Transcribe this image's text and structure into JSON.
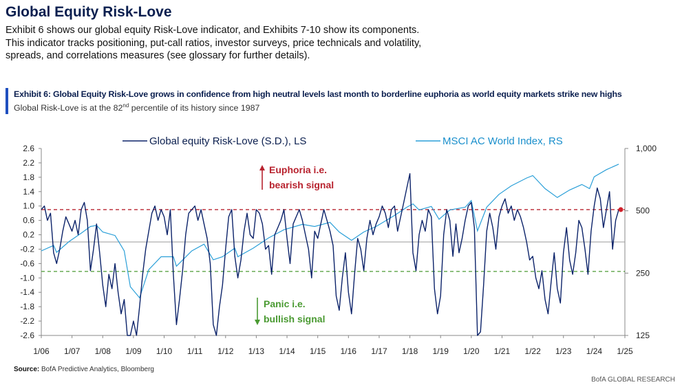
{
  "header": {
    "title": "Global Equity Risk-Love",
    "intro": "Exhibit 6 shows our global equity Risk-Love indicator, and Exhibits 7-10 show its components. This indicator tracks positioning, put-call ratios, investor surveys, price technicals and volatility, spreads, and correlations measures (see glossary for further details)."
  },
  "exhibit": {
    "title": "Exhibit 6: Global Equity Risk-Love grows in confidence from high neutral levels last month to borderline euphoria as world equity markets strike new highs",
    "subtitle_pre": "Global Risk-Love is at the 82",
    "subtitle_sup": "nd",
    "subtitle_post": " percentile of its history since 1987"
  },
  "source": {
    "label": "Source:",
    "text": "BofA Predictive Analytics, Bloomberg"
  },
  "footer": {
    "brand": "BofA GLOBAL RESEARCH"
  },
  "colors": {
    "risk_love": "#0b2269",
    "msci": "#2a9fd8",
    "euphoria": "#b8232f",
    "panic": "#4a9a32",
    "axis": "#888888",
    "latest": "#d0202a"
  },
  "chart_data": {
    "type": "line",
    "legend": [
      "Global equity Risk-Love (S.D.), LS",
      "MSCI AC World Index, RS"
    ],
    "x_tick_labels": [
      "1/06",
      "1/07",
      "1/08",
      "1/09",
      "1/10",
      "1/11",
      "1/12",
      "1/13",
      "1/14",
      "1/15",
      "1/16",
      "1/17",
      "1/18",
      "1/19",
      "1/20",
      "1/21",
      "1/22",
      "1/23",
      "1/24",
      "1/25"
    ],
    "left_axis": {
      "ticks": [
        "2.6",
        "2.2",
        "1.8",
        "1.4",
        "1.0",
        "0.6",
        "0.2",
        "-0.2",
        "-0.6",
        "-1.0",
        "-1.4",
        "-1.8",
        "-2.2",
        "-2.6"
      ],
      "range": [
        -2.6,
        2.6
      ]
    },
    "right_axis": {
      "ticks": [
        "1,000",
        "500",
        "250",
        "125"
      ],
      "range": [
        125,
        1000
      ],
      "scale": "log"
    },
    "thresholds": {
      "euphoria": 0.9,
      "panic": -0.82
    },
    "annotations": {
      "euphoria_line1": "Euphoria  i.e.",
      "euphoria_line2": "bearish signal",
      "panic_line1": "Panic i.e.",
      "panic_line2": "bullish signal"
    },
    "latest_value": 0.9,
    "series": [
      {
        "name": "Global equity Risk-Love (S.D.), LS",
        "axis": "left",
        "points": [
          [
            2006.0,
            0.9
          ],
          [
            2006.1,
            1.0
          ],
          [
            2006.2,
            0.6
          ],
          [
            2006.3,
            0.8
          ],
          [
            2006.4,
            -0.3
          ],
          [
            2006.5,
            -0.6
          ],
          [
            2006.6,
            -0.2
          ],
          [
            2006.7,
            0.3
          ],
          [
            2006.8,
            0.7
          ],
          [
            2006.9,
            0.5
          ],
          [
            2007.0,
            0.3
          ],
          [
            2007.1,
            0.6
          ],
          [
            2007.2,
            0.2
          ],
          [
            2007.3,
            0.9
          ],
          [
            2007.4,
            1.1
          ],
          [
            2007.5,
            0.6
          ],
          [
            2007.6,
            -0.8
          ],
          [
            2007.7,
            -0.2
          ],
          [
            2007.8,
            0.5
          ],
          [
            2007.9,
            -0.3
          ],
          [
            2008.0,
            -1.2
          ],
          [
            2008.1,
            -1.8
          ],
          [
            2008.2,
            -0.9
          ],
          [
            2008.3,
            -1.3
          ],
          [
            2008.4,
            -0.6
          ],
          [
            2008.5,
            -1.4
          ],
          [
            2008.6,
            -2.0
          ],
          [
            2008.7,
            -1.6
          ],
          [
            2008.8,
            -2.6
          ],
          [
            2008.9,
            -2.6
          ],
          [
            2009.0,
            -2.2
          ],
          [
            2009.1,
            -2.6
          ],
          [
            2009.2,
            -1.8
          ],
          [
            2009.3,
            -0.9
          ],
          [
            2009.4,
            -0.2
          ],
          [
            2009.5,
            0.3
          ],
          [
            2009.6,
            0.8
          ],
          [
            2009.7,
            1.0
          ],
          [
            2009.8,
            0.6
          ],
          [
            2009.9,
            0.9
          ],
          [
            2010.0,
            0.7
          ],
          [
            2010.1,
            0.2
          ],
          [
            2010.2,
            0.9
          ],
          [
            2010.3,
            -0.9
          ],
          [
            2010.4,
            -2.3
          ],
          [
            2010.5,
            -1.6
          ],
          [
            2010.6,
            -0.8
          ],
          [
            2010.7,
            0.2
          ],
          [
            2010.8,
            0.8
          ],
          [
            2010.9,
            0.9
          ],
          [
            2011.0,
            1.0
          ],
          [
            2011.1,
            0.6
          ],
          [
            2011.2,
            0.9
          ],
          [
            2011.3,
            0.5
          ],
          [
            2011.4,
            0.1
          ],
          [
            2011.5,
            -0.6
          ],
          [
            2011.6,
            -2.3
          ],
          [
            2011.7,
            -2.6
          ],
          [
            2011.8,
            -1.8
          ],
          [
            2011.9,
            -1.2
          ],
          [
            2012.0,
            -0.2
          ],
          [
            2012.1,
            0.7
          ],
          [
            2012.2,
            0.9
          ],
          [
            2012.3,
            -0.4
          ],
          [
            2012.4,
            -1.0
          ],
          [
            2012.5,
            -0.5
          ],
          [
            2012.6,
            0.3
          ],
          [
            2012.7,
            0.8
          ],
          [
            2012.8,
            0.2
          ],
          [
            2012.9,
            0.1
          ],
          [
            2013.0,
            0.9
          ],
          [
            2013.1,
            0.8
          ],
          [
            2013.2,
            0.5
          ],
          [
            2013.3,
            -0.2
          ],
          [
            2013.4,
            -0.1
          ],
          [
            2013.5,
            -0.9
          ],
          [
            2013.6,
            0.2
          ],
          [
            2013.7,
            0.4
          ],
          [
            2013.8,
            0.6
          ],
          [
            2013.9,
            0.9
          ],
          [
            2014.0,
            0.1
          ],
          [
            2014.1,
            -0.6
          ],
          [
            2014.2,
            0.5
          ],
          [
            2014.3,
            0.7
          ],
          [
            2014.4,
            0.9
          ],
          [
            2014.5,
            0.6
          ],
          [
            2014.6,
            0.2
          ],
          [
            2014.7,
            -0.2
          ],
          [
            2014.8,
            -1.0
          ],
          [
            2014.9,
            0.3
          ],
          [
            2015.0,
            0.1
          ],
          [
            2015.1,
            0.5
          ],
          [
            2015.2,
            0.9
          ],
          [
            2015.3,
            0.6
          ],
          [
            2015.4,
            0.3
          ],
          [
            2015.5,
            -0.1
          ],
          [
            2015.6,
            -1.5
          ],
          [
            2015.7,
            -1.9
          ],
          [
            2015.8,
            -1.0
          ],
          [
            2015.9,
            -0.3
          ],
          [
            2016.0,
            -1.4
          ],
          [
            2016.1,
            -2.0
          ],
          [
            2016.2,
            -0.9
          ],
          [
            2016.3,
            0.1
          ],
          [
            2016.4,
            -0.2
          ],
          [
            2016.5,
            -0.8
          ],
          [
            2016.6,
            0.1
          ],
          [
            2016.7,
            0.6
          ],
          [
            2016.8,
            0.2
          ],
          [
            2016.9,
            0.5
          ],
          [
            2017.0,
            0.7
          ],
          [
            2017.1,
            1.0
          ],
          [
            2017.2,
            0.8
          ],
          [
            2017.3,
            0.4
          ],
          [
            2017.4,
            0.9
          ],
          [
            2017.5,
            1.0
          ],
          [
            2017.6,
            0.3
          ],
          [
            2017.7,
            0.7
          ],
          [
            2017.8,
            1.1
          ],
          [
            2017.9,
            1.5
          ],
          [
            2018.0,
            1.9
          ],
          [
            2018.1,
            -0.3
          ],
          [
            2018.2,
            -0.8
          ],
          [
            2018.3,
            0.2
          ],
          [
            2018.4,
            0.6
          ],
          [
            2018.5,
            0.3
          ],
          [
            2018.6,
            0.9
          ],
          [
            2018.7,
            0.7
          ],
          [
            2018.8,
            -1.3
          ],
          [
            2018.9,
            -2.0
          ],
          [
            2019.0,
            -1.5
          ],
          [
            2019.1,
            0.2
          ],
          [
            2019.2,
            0.9
          ],
          [
            2019.3,
            0.6
          ],
          [
            2019.4,
            -0.4
          ],
          [
            2019.5,
            0.5
          ],
          [
            2019.6,
            -0.3
          ],
          [
            2019.7,
            0.1
          ],
          [
            2019.8,
            0.6
          ],
          [
            2019.9,
            1.0
          ],
          [
            2020.0,
            1.1
          ],
          [
            2020.1,
            0.4
          ],
          [
            2020.2,
            -2.6
          ],
          [
            2020.3,
            -2.5
          ],
          [
            2020.4,
            -1.2
          ],
          [
            2020.5,
            0.3
          ],
          [
            2020.6,
            0.8
          ],
          [
            2020.7,
            0.4
          ],
          [
            2020.8,
            -0.2
          ],
          [
            2020.9,
            0.7
          ],
          [
            2021.0,
            1.0
          ],
          [
            2021.1,
            1.2
          ],
          [
            2021.2,
            0.8
          ],
          [
            2021.3,
            1.0
          ],
          [
            2021.4,
            0.6
          ],
          [
            2021.5,
            0.9
          ],
          [
            2021.6,
            0.7
          ],
          [
            2021.7,
            0.4
          ],
          [
            2021.8,
            0.0
          ],
          [
            2021.9,
            -0.5
          ],
          [
            2022.0,
            -0.4
          ],
          [
            2022.1,
            -1.0
          ],
          [
            2022.2,
            -1.3
          ],
          [
            2022.3,
            -0.8
          ],
          [
            2022.4,
            -1.6
          ],
          [
            2022.5,
            -2.0
          ],
          [
            2022.6,
            -1.1
          ],
          [
            2022.7,
            -0.3
          ],
          [
            2022.8,
            -1.3
          ],
          [
            2022.9,
            -1.7
          ],
          [
            2023.0,
            -0.3
          ],
          [
            2023.1,
            0.4
          ],
          [
            2023.2,
            -0.5
          ],
          [
            2023.3,
            -0.9
          ],
          [
            2023.4,
            -0.3
          ],
          [
            2023.5,
            0.6
          ],
          [
            2023.6,
            0.4
          ],
          [
            2023.7,
            -0.2
          ],
          [
            2023.8,
            -0.9
          ],
          [
            2023.9,
            0.3
          ],
          [
            2024.0,
            1.0
          ],
          [
            2024.1,
            1.5
          ],
          [
            2024.2,
            1.2
          ],
          [
            2024.3,
            0.4
          ],
          [
            2024.4,
            0.9
          ],
          [
            2024.5,
            1.4
          ],
          [
            2024.6,
            -0.2
          ],
          [
            2024.7,
            0.6
          ],
          [
            2024.8,
            0.9
          ]
        ]
      },
      {
        "name": "MSCI AC World Index, RS",
        "axis": "right",
        "points": [
          [
            2006.0,
            320
          ],
          [
            2006.4,
            340
          ],
          [
            2006.5,
            315
          ],
          [
            2006.9,
            355
          ],
          [
            2007.3,
            390
          ],
          [
            2007.6,
            420
          ],
          [
            2007.8,
            425
          ],
          [
            2008.0,
            395
          ],
          [
            2008.4,
            380
          ],
          [
            2008.7,
            320
          ],
          [
            2008.9,
            215
          ],
          [
            2009.2,
            190
          ],
          [
            2009.5,
            260
          ],
          [
            2009.9,
            300
          ],
          [
            2010.3,
            300
          ],
          [
            2010.4,
            270
          ],
          [
            2010.9,
            320
          ],
          [
            2011.3,
            345
          ],
          [
            2011.6,
            290
          ],
          [
            2011.9,
            300
          ],
          [
            2012.3,
            330
          ],
          [
            2012.4,
            300
          ],
          [
            2012.9,
            330
          ],
          [
            2013.4,
            370
          ],
          [
            2013.9,
            405
          ],
          [
            2014.5,
            430
          ],
          [
            2014.9,
            420
          ],
          [
            2015.4,
            440
          ],
          [
            2015.7,
            395
          ],
          [
            2016.1,
            360
          ],
          [
            2016.5,
            395
          ],
          [
            2016.9,
            420
          ],
          [
            2017.5,
            475
          ],
          [
            2017.9,
            520
          ],
          [
            2018.1,
            540
          ],
          [
            2018.3,
            505
          ],
          [
            2018.7,
            525
          ],
          [
            2018.95,
            455
          ],
          [
            2019.3,
            505
          ],
          [
            2019.8,
            520
          ],
          [
            2020.0,
            560
          ],
          [
            2020.2,
            400
          ],
          [
            2020.5,
            520
          ],
          [
            2020.9,
            600
          ],
          [
            2021.3,
            660
          ],
          [
            2021.8,
            720
          ],
          [
            2022.0,
            740
          ],
          [
            2022.4,
            640
          ],
          [
            2022.8,
            580
          ],
          [
            2023.2,
            630
          ],
          [
            2023.6,
            670
          ],
          [
            2023.85,
            640
          ],
          [
            2024.0,
            730
          ],
          [
            2024.4,
            790
          ],
          [
            2024.8,
            840
          ]
        ]
      }
    ]
  }
}
